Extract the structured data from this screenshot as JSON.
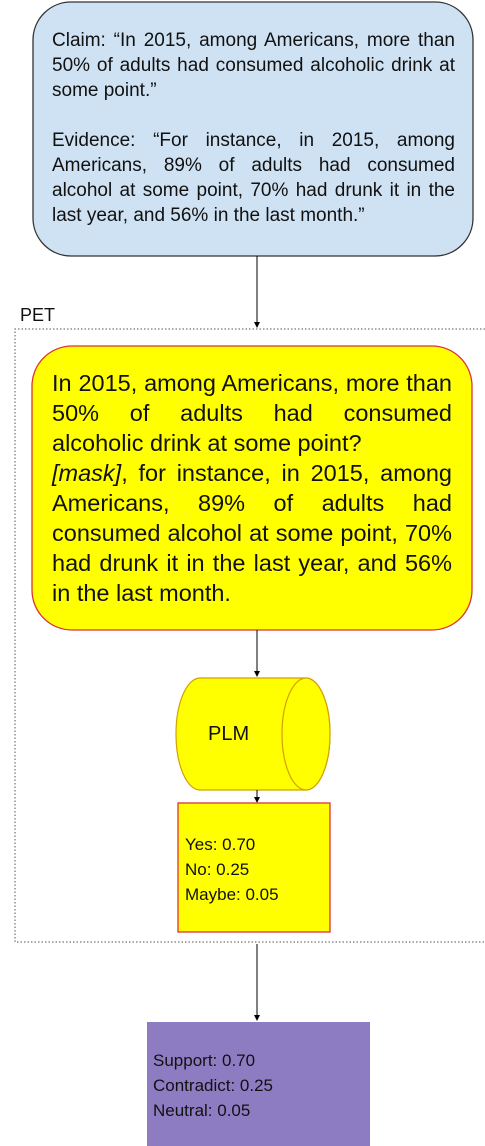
{
  "claim_box": {
    "claim": "Claim: “In 2015, among Americans, more than 50% of adults had consumed alcoholic drink at some point.”",
    "evidence": "Evidence:  “For instance, in 2015, among Americans, 89% of adults had consumed alcohol at some point, 70% had drunk it in the last year, and 56% in the last month.”"
  },
  "pet": {
    "label": "PET"
  },
  "prompt_box": {
    "question": "In 2015, among Americans, more than 50% of adults had consumed alcoholic drink at some point?",
    "mask": "[mask]",
    "rest": ", for instance, in 2015, among Americans, 89% of adults had consumed alcohol at some point, 70% had drunk it in the last year, and 56% in the last month."
  },
  "plm": {
    "label": "PLM"
  },
  "pet_output": {
    "lines": [
      "Yes: 0.70",
      "No: 0.25",
      "Maybe: 0.05"
    ]
  },
  "final_output": {
    "lines": [
      "Support: 0.70",
      "Contradict: 0.25",
      "Neutral: 0.05"
    ]
  }
}
